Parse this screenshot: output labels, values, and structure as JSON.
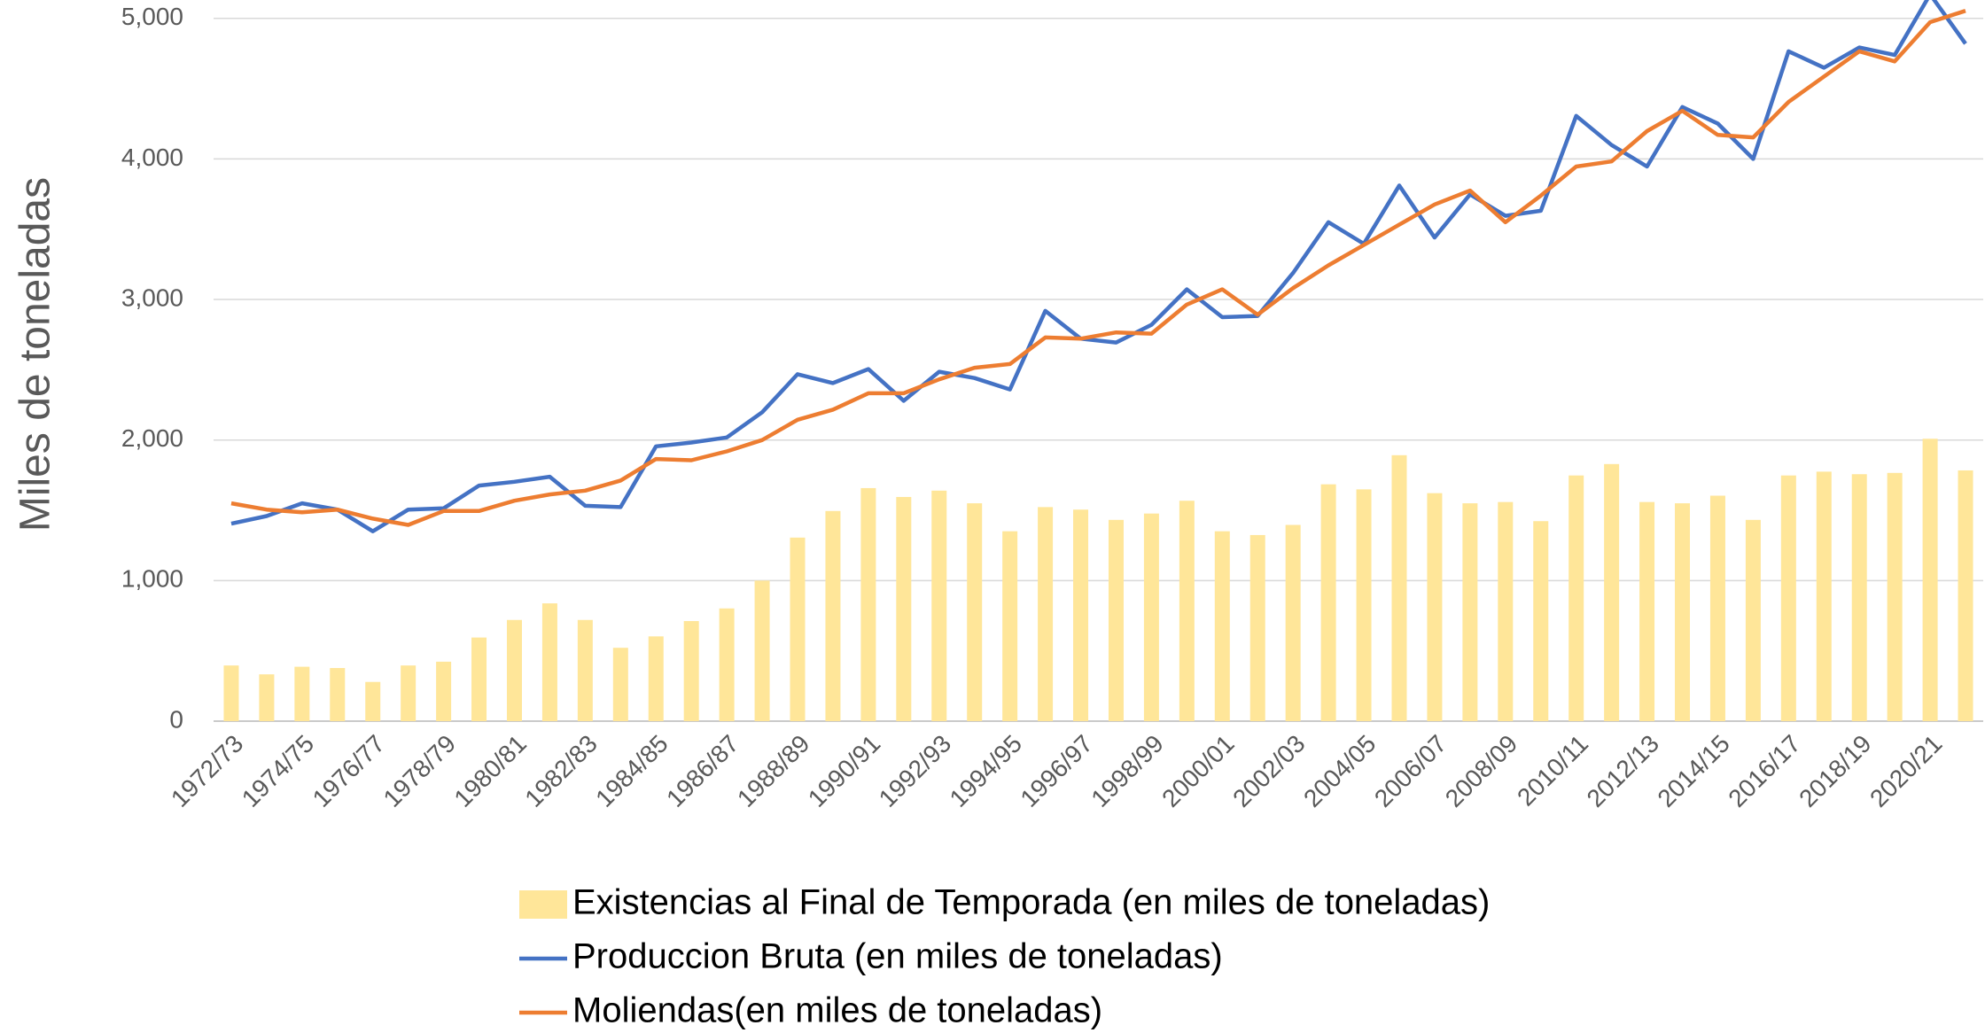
{
  "chart_data": {
    "type": "bar",
    "y_label": "Miles de toneladas",
    "categories": [
      "1972/73",
      null,
      "1974/75",
      null,
      "1976/77",
      null,
      "1978/79",
      null,
      "1980/81",
      null,
      "1982/83",
      null,
      "1984/85",
      null,
      "1986/87",
      null,
      "1988/89",
      null,
      "1990/91",
      null,
      "1992/93",
      null,
      "1994/95",
      null,
      "1996/97",
      null,
      "1998/99",
      null,
      "2000/01",
      null,
      "2002/03",
      null,
      "2004/05",
      null,
      "2006/07",
      null,
      "2008/09",
      null,
      "2010/11",
      null,
      "2012/13",
      null,
      "2014/15",
      null,
      "2016/17",
      null,
      "2018/19",
      null,
      "2020/21",
      null
    ],
    "series": [
      {
        "name": "Existencias al Final de Temporada (en miles de toneladas)",
        "type": "bar",
        "color": "#ffe699",
        "values": [
          396,
          333,
          387,
          378,
          279,
          396,
          423,
          595,
          720,
          838,
          720,
          522,
          603,
          712,
          802,
          1000,
          1306,
          1495,
          1658,
          1595,
          1640,
          1550,
          1351,
          1523,
          1505,
          1432,
          1477,
          1568,
          1351,
          1324,
          1396,
          1685,
          1649,
          1892,
          1622,
          1550,
          1559,
          1423,
          1748,
          1829,
          1559,
          1550,
          1604,
          1432,
          1748,
          1775,
          1757,
          1766,
          2009,
          1784
        ]
      },
      {
        "name": "Produccion Bruta (en miles de toneladas)",
        "type": "line",
        "color": "#4472c4",
        "values": [
          1405,
          1459,
          1550,
          1505,
          1351,
          1505,
          1514,
          1676,
          1703,
          1739,
          1532,
          1523,
          1955,
          1982,
          2018,
          2198,
          2468,
          2405,
          2505,
          2279,
          2486,
          2441,
          2360,
          2919,
          2721,
          2694,
          2820,
          3072,
          2874,
          2883,
          3189,
          3550,
          3396,
          3811,
          3441,
          3748,
          3595,
          3631,
          4306,
          4099,
          3946,
          4369,
          4252,
          4000,
          4766,
          4649,
          4793,
          4739,
          5171,
          4820
        ]
      },
      {
        "name": "Moliendas(en miles de toneladas)",
        "type": "line",
        "color": "#ed7d31",
        "values": [
          1550,
          1505,
          1486,
          1505,
          1441,
          1396,
          1495,
          1495,
          1568,
          1613,
          1640,
          1712,
          1865,
          1856,
          1919,
          2000,
          2144,
          2216,
          2333,
          2333,
          2432,
          2514,
          2541,
          2730,
          2721,
          2766,
          2757,
          2964,
          3072,
          2892,
          3081,
          3243,
          3387,
          3532,
          3676,
          3775,
          3550,
          3739,
          3946,
          3982,
          4198,
          4342,
          4171,
          4153,
          4405,
          4586,
          4766,
          4694,
          4973,
          5054
        ]
      }
    ],
    "ylim": [
      0,
      5200
    ],
    "yticks": [
      0,
      {
        "value": 1000,
        "label": "1,000"
      },
      {
        "value": 2000,
        "label": "2,000"
      },
      {
        "value": 3000,
        "label": "3,000"
      },
      {
        "value": 4000,
        "label": "4,000"
      },
      {
        "value": 5000,
        "label": "5,000"
      }
    ],
    "grid": true,
    "legend": "bottom"
  }
}
